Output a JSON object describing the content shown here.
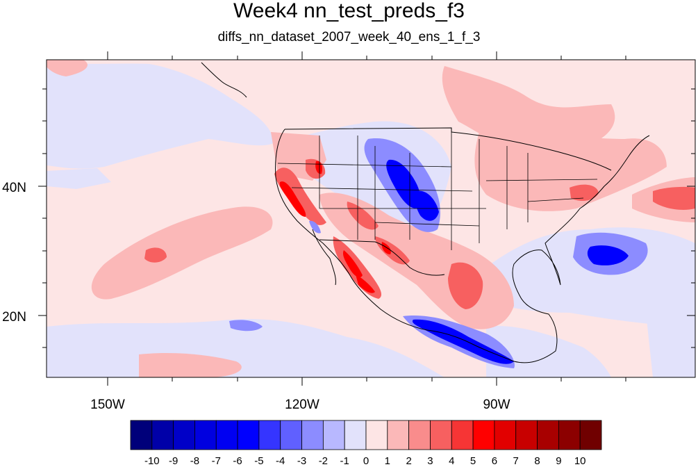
{
  "title": "Week4 nn_test_preds_f3",
  "subtitle": "diffs_nn_dataset_2007_week_40_ens_1_f_3",
  "axes": {
    "lon_labels": [
      "150W",
      "120W",
      "90W"
    ],
    "lat_labels": [
      "40N",
      "20N"
    ]
  },
  "colorbar": {
    "labels": [
      "-10",
      "-9",
      "-8",
      "-7",
      "-6",
      "-5",
      "-4",
      "-3",
      "-2",
      "-1",
      "0",
      "1",
      "2",
      "3",
      "4",
      "5",
      "6",
      "7",
      "8",
      "9",
      "10"
    ],
    "colors": [
      "#00007a",
      "#0000a8",
      "#0000c8",
      "#0000e0",
      "#0000f2",
      "#0000ff",
      "#3535ff",
      "#6060ff",
      "#8c8cff",
      "#b8b8ff",
      "#e2e2fb",
      "#fde5e5",
      "#fbb8b8",
      "#f98c8c",
      "#f76060",
      "#f63535",
      "#ff0000",
      "#e20000",
      "#c80000",
      "#a80000",
      "#8c0000",
      "#700000"
    ]
  },
  "chart_data": {
    "type": "heatmap",
    "title": "Week4 nn_test_preds_f3",
    "subtitle": "diffs_nn_dataset_2007_week_40_ens_1_f_3",
    "x_ticks": [
      "150W",
      "120W",
      "90W"
    ],
    "y_ticks": [
      "40N",
      "20N"
    ],
    "lon_range": [
      -160,
      -60
    ],
    "lat_range": [
      10,
      60
    ],
    "levels": [
      -10,
      -9,
      -8,
      -7,
      -6,
      -5,
      -4,
      -3,
      -2,
      -1,
      0,
      1,
      2,
      3,
      4,
      5,
      6,
      7,
      8,
      9,
      10
    ]
  }
}
